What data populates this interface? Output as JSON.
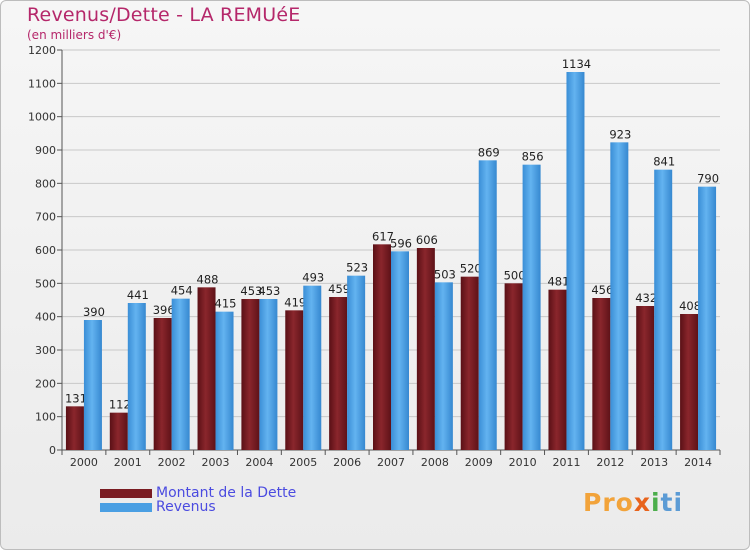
{
  "title": "Revenus/Dette - LA REMUéE",
  "subtitle": "(en milliers d'€)",
  "logo": {
    "p1": "Pro",
    "p2": "x",
    "p3": "i",
    "p4": "ti"
  },
  "colors": {
    "dette": "#7a1c22",
    "revenus": "#4a9fe3",
    "text": "#b5276a"
  },
  "chart_data": {
    "type": "bar",
    "categories": [
      "2000",
      "2001",
      "2002",
      "2003",
      "2004",
      "2005",
      "2006",
      "2007",
      "2008",
      "2009",
      "2010",
      "2011",
      "2012",
      "2013",
      "2014"
    ],
    "series": [
      {
        "name": "Montant de la Dette",
        "color": "#7a1c22",
        "values": [
          131,
          112,
          396,
          488,
          453,
          419,
          459,
          617,
          606,
          520,
          500,
          481,
          456,
          432,
          408
        ]
      },
      {
        "name": "Revenus",
        "color": "#4a9fe3",
        "values": [
          390,
          441,
          454,
          415,
          453,
          493,
          523,
          596,
          503,
          869,
          856,
          1134,
          923,
          841,
          790
        ]
      }
    ],
    "ylim": [
      0,
      1200
    ],
    "yticks": [
      0,
      100,
      200,
      300,
      400,
      500,
      600,
      700,
      800,
      900,
      1000,
      1100,
      1200
    ],
    "grid": true,
    "legend_position": "bottom-left"
  }
}
